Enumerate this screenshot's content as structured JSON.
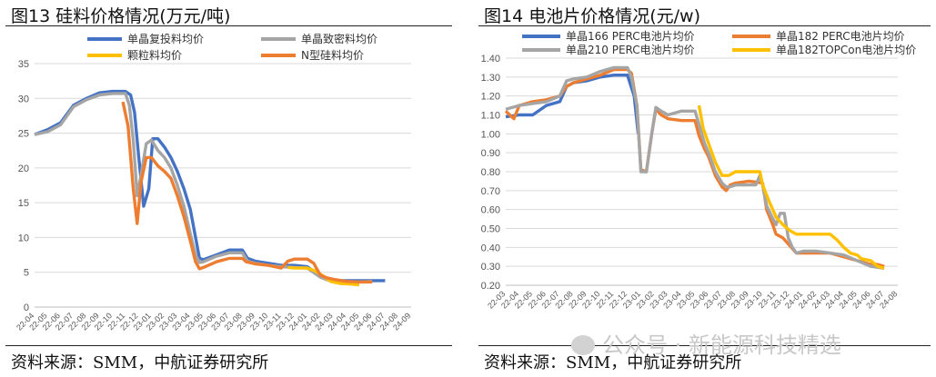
{
  "figures": [
    {
      "title": "图13  硅料价格情况(万元/吨)",
      "source": "资料来源：SMM，中航证券研究所"
    },
    {
      "title": "图14  电池片价格情况(元/w)",
      "source": "资料来源：SMM，中航证券研究所"
    }
  ],
  "watermark": "公众号 · 新能源科技精选",
  "chart_data": [
    {
      "type": "line",
      "title": "",
      "xlabel": "",
      "ylabel": "",
      "ylim": [
        0,
        35
      ],
      "yticks": [
        0,
        5,
        10,
        15,
        20,
        25,
        30,
        35
      ],
      "grid": "horizontal",
      "legend_position": "top",
      "x_labels": [
        "22-04",
        "22-05",
        "22-06",
        "22-07",
        "22-08",
        "22-09",
        "22-10",
        "22-11",
        "22-12",
        "23-01",
        "23-02",
        "23-03",
        "23-04",
        "23-05",
        "23-06",
        "23-07",
        "23-08",
        "23-09",
        "23-10",
        "23-11",
        "23-12",
        "24-01",
        "24-02",
        "24-03",
        "24-04",
        "24-05",
        "24-06",
        "24-07",
        "24-08",
        "24-09"
      ],
      "series": [
        {
          "name": "单晶复投料均价",
          "color": "#4472C4",
          "points": [
            [
              0,
              24.8
            ],
            [
              1,
              25.5
            ],
            [
              2,
              26.5
            ],
            [
              3,
              29
            ],
            [
              4,
              30
            ],
            [
              5,
              30.8
            ],
            [
              6,
              31
            ],
            [
              7,
              31
            ],
            [
              7.4,
              30.5
            ],
            [
              7.7,
              28
            ],
            [
              8.0,
              22
            ],
            [
              8.4,
              14.5
            ],
            [
              8.8,
              17
            ],
            [
              9.1,
              24.2
            ],
            [
              9.5,
              24.2
            ],
            [
              10,
              23
            ],
            [
              10.5,
              21.5
            ],
            [
              11,
              19.5
            ],
            [
              11.5,
              17
            ],
            [
              12,
              14
            ],
            [
              12.4,
              10
            ],
            [
              12.7,
              7
            ],
            [
              13,
              6.8
            ],
            [
              14,
              7.5
            ],
            [
              15,
              8.2
            ],
            [
              16,
              8.2
            ],
            [
              16.4,
              7
            ],
            [
              17,
              6.6
            ],
            [
              18,
              6.3
            ],
            [
              19,
              6
            ],
            [
              20,
              6
            ],
            [
              21,
              5.8
            ],
            [
              22,
              4.5
            ],
            [
              23,
              3.8
            ],
            [
              24,
              3.8
            ],
            [
              25,
              3.8
            ],
            [
              26,
              3.8
            ],
            [
              27,
              3.8
            ]
          ]
        },
        {
          "name": "单晶致密料均价",
          "color": "#A5A5A5",
          "points": [
            [
              0,
              24.8
            ],
            [
              1,
              25.2
            ],
            [
              2,
              26.2
            ],
            [
              3,
              28.8
            ],
            [
              4,
              29.8
            ],
            [
              5,
              30.5
            ],
            [
              6,
              30.7
            ],
            [
              7,
              30.7
            ],
            [
              7.3,
              29
            ],
            [
              7.6,
              24
            ],
            [
              7.9,
              16
            ],
            [
              8.2,
              19
            ],
            [
              8.6,
              23.5
            ],
            [
              9.0,
              24
            ],
            [
              9.5,
              22.5
            ],
            [
              10,
              21.5
            ],
            [
              10.5,
              20
            ],
            [
              11,
              17.5
            ],
            [
              11.5,
              14.5
            ],
            [
              12,
              10.5
            ],
            [
              12.4,
              7.5
            ],
            [
              12.7,
              6.4
            ],
            [
              13,
              6.5
            ],
            [
              14,
              7.3
            ],
            [
              15,
              7.8
            ],
            [
              16,
              7.8
            ],
            [
              16.4,
              6.6
            ],
            [
              17,
              6.3
            ],
            [
              18,
              6
            ],
            [
              19,
              5.8
            ],
            [
              20,
              5.7
            ],
            [
              21,
              5.6
            ],
            [
              22,
              4.3
            ],
            [
              23,
              3.6
            ],
            [
              24,
              3.6
            ],
            [
              25,
              3.6
            ],
            [
              26,
              3.7
            ]
          ]
        },
        {
          "name": "颗粒料均价",
          "color": "#FFC000",
          "points": [
            [
              19.5,
              5.7
            ],
            [
              20,
              5.6
            ],
            [
              21,
              5.6
            ],
            [
              21.6,
              5.2
            ],
            [
              22.2,
              4.5
            ],
            [
              22.8,
              3.7
            ],
            [
              23.5,
              3.4
            ],
            [
              24.3,
              3.3
            ],
            [
              25,
              3.2
            ]
          ]
        },
        {
          "name": "N型硅料均价",
          "color": "#ED7D31",
          "points": [
            [
              6.8,
              29.5
            ],
            [
              7.2,
              26
            ],
            [
              7.6,
              17
            ],
            [
              7.9,
              12
            ],
            [
              8.2,
              18
            ],
            [
              8.6,
              21.5
            ],
            [
              9,
              21.5
            ],
            [
              9.5,
              20.3
            ],
            [
              10,
              19.5
            ],
            [
              10.5,
              18.5
            ],
            [
              11,
              16
            ],
            [
              11.5,
              13
            ],
            [
              12,
              9.5
            ],
            [
              12.4,
              6.5
            ],
            [
              12.7,
              5.5
            ],
            [
              13,
              5.7
            ],
            [
              14,
              6.5
            ],
            [
              15,
              7
            ],
            [
              16,
              7
            ],
            [
              16.3,
              6.5
            ],
            [
              17,
              6.2
            ],
            [
              18,
              6
            ],
            [
              19,
              5.6
            ],
            [
              19.5,
              6.6
            ],
            [
              20,
              6.9
            ],
            [
              21,
              6.9
            ],
            [
              21.5,
              6.3
            ],
            [
              22,
              4.6
            ],
            [
              22.5,
              4.2
            ],
            [
              23,
              4
            ],
            [
              24,
              3.7
            ],
            [
              25,
              3.6
            ],
            [
              26,
              3.6
            ]
          ]
        }
      ]
    },
    {
      "type": "line",
      "title": "",
      "xlabel": "",
      "ylabel": "",
      "ylim": [
        0.2,
        1.4
      ],
      "yticks": [
        0.2,
        0.3,
        0.4,
        0.5,
        0.6,
        0.7,
        0.8,
        0.9,
        1.0,
        1.1,
        1.2,
        1.3,
        1.4
      ],
      "grid": "horizontal",
      "legend_position": "top",
      "x_labels": [
        "22-03",
        "22-04",
        "22-05",
        "22-06",
        "22-07",
        "22-08",
        "22-09",
        "22-10",
        "22-11",
        "22-12",
        "23-01",
        "23-02",
        "23-03",
        "23-04",
        "23-05",
        "23-06",
        "23-07",
        "23-08",
        "23-09",
        "23-10",
        "23-11",
        "23-12",
        "24-01",
        "24-02",
        "24-03",
        "24-04",
        "24-05",
        "24-06",
        "24-07",
        "24-08"
      ],
      "series": [
        {
          "name": "单晶166 PERC电池片均价",
          "color": "#4472C4",
          "points": [
            [
              0,
              1.09
            ],
            [
              1,
              1.1
            ],
            [
              2,
              1.1
            ],
            [
              3,
              1.15
            ],
            [
              4,
              1.17
            ],
            [
              4.5,
              1.25
            ],
            [
              5,
              1.27
            ],
            [
              6,
              1.28
            ],
            [
              7,
              1.3
            ],
            [
              8,
              1.31
            ],
            [
              9,
              1.31
            ],
            [
              9.5,
              1.2
            ],
            [
              9.8,
              1.0
            ]
          ]
        },
        {
          "name": "单晶182 PERC电池片均价",
          "color": "#ED7D31",
          "points": [
            [
              0,
              1.12
            ],
            [
              0.6,
              1.08
            ],
            [
              1,
              1.15
            ],
            [
              2,
              1.17
            ],
            [
              3,
              1.18
            ],
            [
              4,
              1.2
            ],
            [
              4.5,
              1.25
            ],
            [
              5,
              1.27
            ],
            [
              6,
              1.29
            ],
            [
              7,
              1.31
            ],
            [
              8,
              1.34
            ],
            [
              9,
              1.34
            ],
            [
              9.3,
              1.32
            ],
            [
              9.7,
              1.15
            ],
            [
              10.0,
              0.81
            ],
            [
              10.4,
              0.8
            ],
            [
              10.8,
              1.0
            ],
            [
              11.1,
              1.13
            ],
            [
              11.5,
              1.1
            ],
            [
              12,
              1.08
            ],
            [
              13,
              1.07
            ],
            [
              14,
              1.07
            ],
            [
              14.3,
              0.99
            ],
            [
              14.7,
              0.92
            ],
            [
              15,
              0.88
            ],
            [
              15.5,
              0.78
            ],
            [
              16,
              0.72
            ],
            [
              16.3,
              0.7
            ],
            [
              16.6,
              0.73
            ],
            [
              17,
              0.74
            ],
            [
              18,
              0.75
            ],
            [
              19,
              0.74
            ],
            [
              19.3,
              0.6
            ],
            [
              19.7,
              0.53
            ],
            [
              20,
              0.47
            ],
            [
              20.5,
              0.45
            ],
            [
              21,
              0.41
            ],
            [
              21.5,
              0.37
            ],
            [
              22,
              0.37
            ],
            [
              23,
              0.37
            ],
            [
              24,
              0.37
            ],
            [
              25,
              0.35
            ],
            [
              26,
              0.33
            ],
            [
              27,
              0.31
            ],
            [
              27.5,
              0.31
            ],
            [
              28,
              0.3
            ]
          ]
        },
        {
          "name": "单晶210 PERC电池片均价",
          "color": "#A5A5A5",
          "points": [
            [
              0,
              1.13
            ],
            [
              1,
              1.15
            ],
            [
              2,
              1.16
            ],
            [
              3,
              1.17
            ],
            [
              4,
              1.2
            ],
            [
              4.5,
              1.28
            ],
            [
              5,
              1.29
            ],
            [
              6,
              1.3
            ],
            [
              7,
              1.33
            ],
            [
              8,
              1.35
            ],
            [
              9,
              1.35
            ],
            [
              9.3,
              1.3
            ],
            [
              9.7,
              1.15
            ],
            [
              10.0,
              0.8
            ],
            [
              10.4,
              0.8
            ],
            [
              10.8,
              1.0
            ],
            [
              11.1,
              1.14
            ],
            [
              11.5,
              1.12
            ],
            [
              12,
              1.1
            ],
            [
              13,
              1.12
            ],
            [
              14,
              1.12
            ],
            [
              14.3,
              1.05
            ],
            [
              14.7,
              0.95
            ],
            [
              15,
              0.9
            ],
            [
              15.5,
              0.8
            ],
            [
              16,
              0.74
            ],
            [
              16.3,
              0.72
            ],
            [
              16.6,
              0.72
            ],
            [
              17,
              0.73
            ],
            [
              18,
              0.73
            ],
            [
              18.5,
              0.73
            ],
            [
              18.8,
              0.78
            ],
            [
              19,
              0.73
            ],
            [
              19.3,
              0.62
            ],
            [
              19.7,
              0.56
            ],
            [
              20,
              0.52
            ],
            [
              20.3,
              0.58
            ],
            [
              20.6,
              0.58
            ],
            [
              20.9,
              0.45
            ],
            [
              21.2,
              0.4
            ],
            [
              21.5,
              0.37
            ],
            [
              22,
              0.38
            ],
            [
              23,
              0.38
            ],
            [
              24,
              0.37
            ],
            [
              25,
              0.36
            ],
            [
              26,
              0.33
            ],
            [
              27,
              0.3
            ],
            [
              28,
              0.29
            ]
          ]
        },
        {
          "name": "单晶182TOPCon电池片均价",
          "color": "#FFC000",
          "points": [
            [
              14.3,
              1.15
            ],
            [
              14.6,
              1.03
            ],
            [
              15,
              0.95
            ],
            [
              15.5,
              0.85
            ],
            [
              16,
              0.78
            ],
            [
              16.5,
              0.78
            ],
            [
              17,
              0.8
            ],
            [
              18,
              0.8
            ],
            [
              18.8,
              0.8
            ],
            [
              19,
              0.73
            ],
            [
              19.5,
              0.64
            ],
            [
              20,
              0.56
            ],
            [
              20.5,
              0.52
            ],
            [
              21,
              0.49
            ],
            [
              21.5,
              0.47
            ],
            [
              22,
              0.47
            ],
            [
              23,
              0.47
            ],
            [
              24,
              0.47
            ],
            [
              24.5,
              0.44
            ],
            [
              25,
              0.4
            ],
            [
              25.5,
              0.37
            ],
            [
              26,
              0.36
            ],
            [
              26.3,
              0.34
            ],
            [
              27,
              0.33
            ],
            [
              27.5,
              0.3
            ],
            [
              28,
              0.29
            ]
          ]
        }
      ]
    }
  ]
}
